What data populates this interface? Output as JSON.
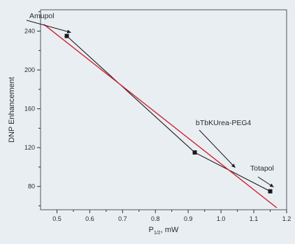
{
  "chart_data": {
    "type": "line",
    "title": "",
    "xlabel": "P",
    "xlabel_subscript": "1/2",
    "xlabel_unit": ", mW",
    "ylabel": "DNP Enhancement",
    "xlim": [
      0.45,
      1.2
    ],
    "ylim": [
      56,
      262
    ],
    "x_ticks": [
      0.5,
      0.6,
      0.7,
      0.8,
      0.9,
      1.0,
      1.1,
      1.2
    ],
    "x_tick_labels": [
      "0.5",
      "0.6",
      "0.7",
      "0.8",
      "0.9",
      "1.0",
      "1.1",
      "1.2"
    ],
    "y_ticks": [
      80,
      120,
      160,
      200,
      240
    ],
    "y_tick_labels": [
      "80",
      "120",
      "160",
      "200",
      "240"
    ],
    "grid": false,
    "legend": "none",
    "series": [
      {
        "kind": "data",
        "x": [
          0.53,
          0.92,
          1.15
        ],
        "y": [
          235,
          115,
          75
        ],
        "color": "#1a1a1a",
        "marker": "square"
      },
      {
        "kind": "fit",
        "x": [
          0.46,
          1.17
        ],
        "y": [
          247,
          58
        ],
        "color": "#d0222e"
      }
    ],
    "annotations": [
      {
        "label": "Amupol",
        "x": 0.53,
        "y": 235
      },
      {
        "label": "bTbKUrea-PEG4",
        "x": 1.035,
        "y": 95
      },
      {
        "label": "Totapol",
        "x": 1.15,
        "y": 75
      }
    ]
  }
}
